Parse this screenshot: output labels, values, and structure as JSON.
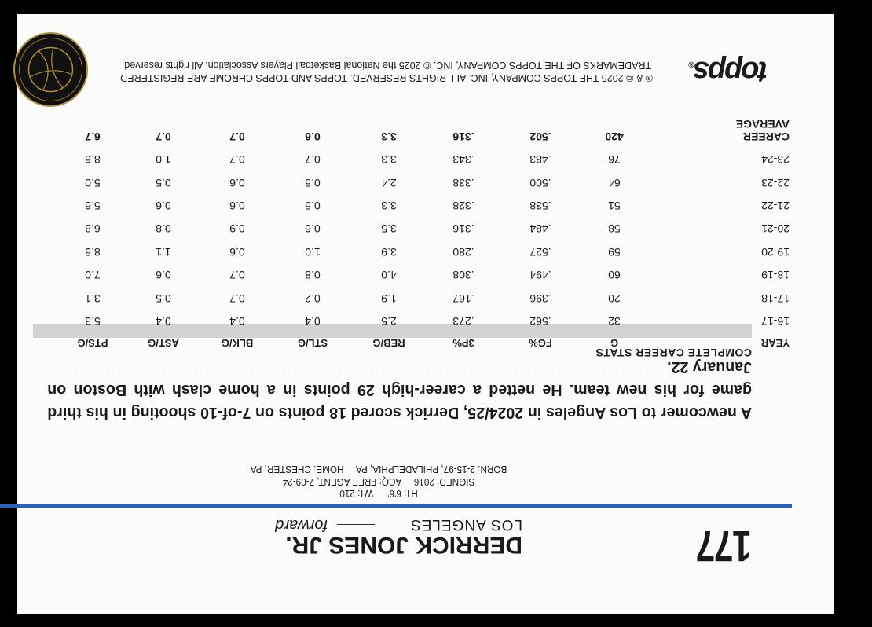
{
  "card": {
    "number": "177",
    "player_name": "DERRICK JONES JR.",
    "team": "LOS ANGELES",
    "position": "forward",
    "bio": {
      "line1": "HT: 6'6\"     WT: 210",
      "line2": "SIGNED: 2016     ACQ: FREE AGENT, 7-09-24",
      "line3": "BORN: 2-15-97, PHILADELPHIA, PA     HOME: CHESTER, PA"
    },
    "blurb": "A newcomer to Los Angeles in 2024/25, Derrick scored 18 points on 7-of-10 shooting in his third game for his new team. He netted a career-high 29 points in a home clash with Boston on January 22.",
    "stats_title": "COMPLETE CAREER STATS",
    "stats_headers": [
      "YEAR",
      "G",
      "FG%",
      "3P%",
      "REB/G",
      "STL/G",
      "BLK/G",
      "AST/G",
      "PTS/G"
    ],
    "stats_rows": [
      [
        "16-17",
        "32",
        ".562",
        ".273",
        "2.5",
        "0.4",
        "0.4",
        "0.4",
        "5.3"
      ],
      [
        "17-18",
        "20",
        ".396",
        ".167",
        "1.9",
        "0.2",
        "0.7",
        "0.5",
        "3.1"
      ],
      [
        "18-19",
        "60",
        ".494",
        ".308",
        "4.0",
        "0.8",
        "0.7",
        "0.6",
        "7.0"
      ],
      [
        "19-20",
        "59",
        ".527",
        ".280",
        "3.9",
        "1.0",
        "0.6",
        "1.1",
        "8.5"
      ],
      [
        "20-21",
        "58",
        ".484",
        ".316",
        "3.5",
        "0.6",
        "0.9",
        "0.8",
        "6.8"
      ],
      [
        "21-22",
        "51",
        ".538",
        ".328",
        "3.3",
        "0.5",
        "0.6",
        "0.6",
        "5.6"
      ],
      [
        "22-23",
        "64",
        ".500",
        ".338",
        "2.4",
        "0.5",
        "0.6",
        "0.5",
        "5.0"
      ],
      [
        "23-24",
        "76",
        ".483",
        ".343",
        "3.3",
        "0.7",
        "0.7",
        "1.0",
        "8.6"
      ],
      [
        "CAREER AVERAGE",
        "420",
        ".502",
        ".316",
        "3.3",
        "0.6",
        "0.7",
        "0.7",
        "6.7"
      ]
    ],
    "copyright_line1": "® & © 2025 THE TOPPS COMPANY, INC. ALL RIGHTS RESERVED. TOPPS AND TOPPS CHROME ARE REGISTERED",
    "copyright_line2": "TRADEMARKS OF THE TOPPS COMPANY, INC. © 2025 the National Basketball Players Association. All rights reserved.",
    "brand_logo": "topps",
    "seal_logo": "NATIONAL BASKETBALL PLAYERS ASSOCIATION",
    "colors": {
      "accent_line": "#2d5fbf",
      "header_band": "#d2d2d2",
      "background": "#000000"
    }
  }
}
